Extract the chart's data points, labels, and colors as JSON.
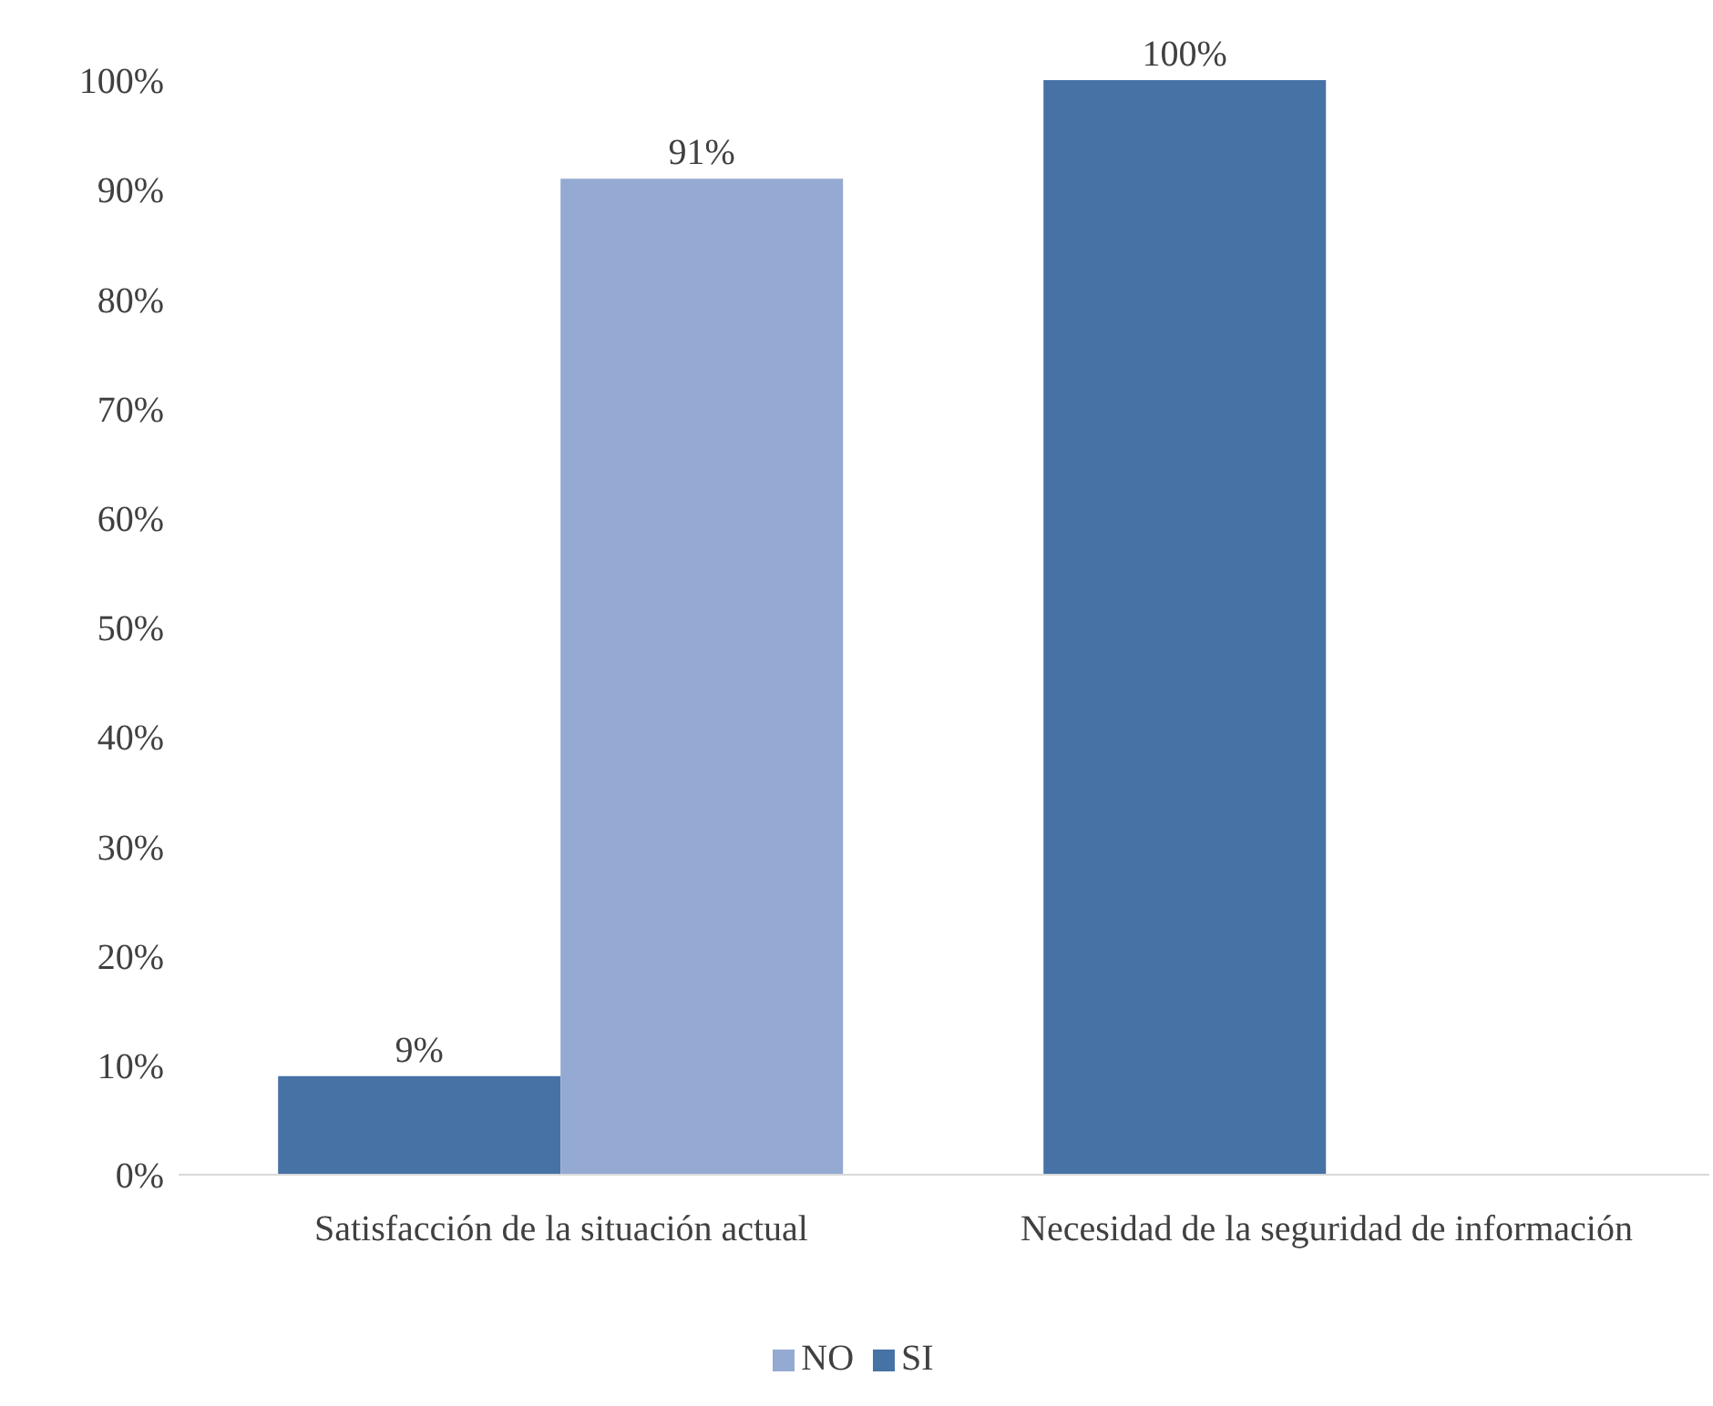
{
  "chart_data": {
    "type": "bar",
    "categories": [
      "Satisfacción de la situación actual",
      "Necesidad de la seguridad de información"
    ],
    "series": [
      {
        "name": "SI",
        "color": "#4672a6",
        "values": [
          9,
          100
        ],
        "value_labels": [
          "9%",
          "100%"
        ]
      },
      {
        "name": "NO",
        "color": "#95aad2",
        "values": [
          91,
          null
        ],
        "value_labels": [
          "91%",
          null
        ]
      }
    ],
    "ylim": [
      0,
      100
    ],
    "yticks": [
      {
        "value": 0,
        "label": "0%"
      },
      {
        "value": 10,
        "label": "10%"
      },
      {
        "value": 20,
        "label": "20%"
      },
      {
        "value": 30,
        "label": "30%"
      },
      {
        "value": 40,
        "label": "40%"
      },
      {
        "value": 50,
        "label": "50%"
      },
      {
        "value": 60,
        "label": "60%"
      },
      {
        "value": 70,
        "label": "70%"
      },
      {
        "value": 80,
        "label": "80%"
      },
      {
        "value": 90,
        "label": "90%"
      },
      {
        "value": 100,
        "label": "100%"
      }
    ],
    "grid": false,
    "legend": "bottom"
  }
}
